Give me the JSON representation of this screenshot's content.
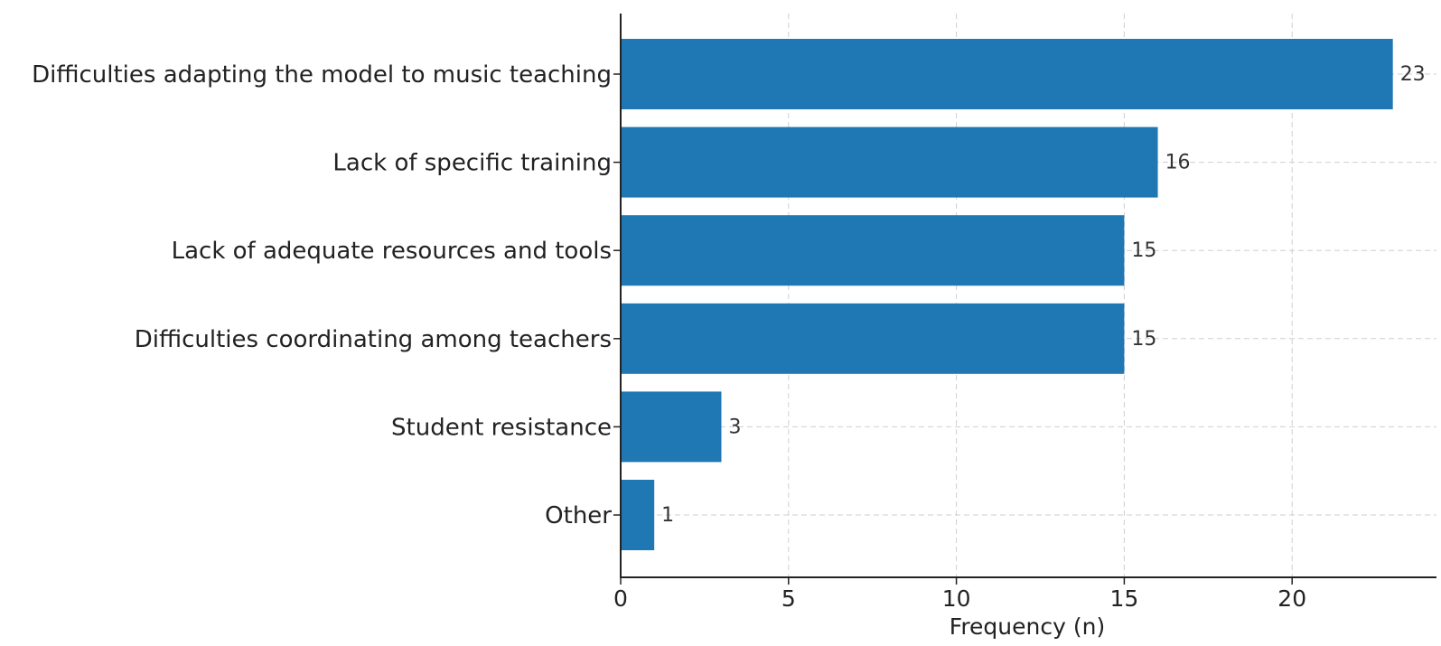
{
  "chart_data": {
    "type": "bar",
    "orientation": "horizontal",
    "title": "",
    "xlabel": "Frequency (n)",
    "ylabel": "",
    "categories": [
      "Difficulties adapting the model to music teaching",
      "Lack of specific training",
      "Lack of adequate resources and tools",
      "Difficulties coordinating among teachers",
      "Student resistance",
      "Other"
    ],
    "values": [
      23,
      16,
      15,
      15,
      3,
      1
    ],
    "xlim": [
      0,
      24.3
    ],
    "xticks": [
      0,
      5,
      10,
      15,
      20
    ],
    "grid": true,
    "bar_color": "#1f77b4",
    "data_labels": true
  }
}
